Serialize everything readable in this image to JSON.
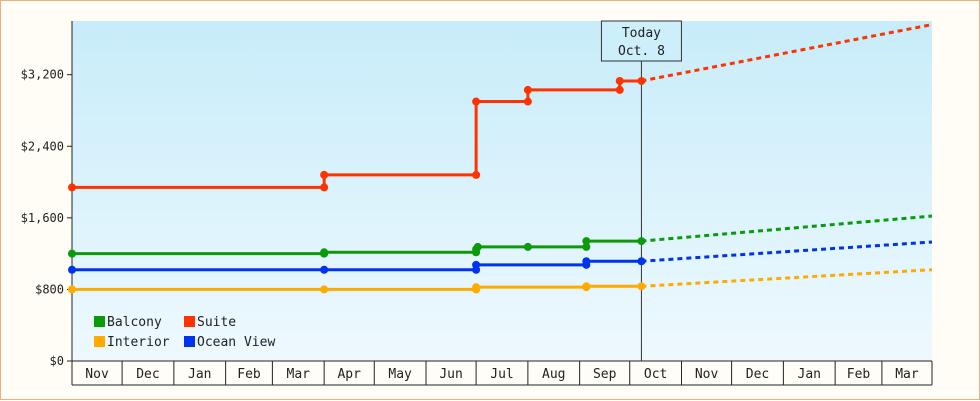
{
  "chart_data": {
    "type": "line",
    "subtype": "step",
    "title": "",
    "xlabel": "",
    "ylabel": "",
    "ylim": [
      0,
      3800
    ],
    "y_ticks": [
      "$0",
      "$800",
      "$1,600",
      "$2,400",
      "$3,200"
    ],
    "y_tick_values": [
      0,
      800,
      1600,
      2400,
      3200
    ],
    "x_tick_labels": [
      "Nov",
      "Dec",
      "Jan",
      "Feb",
      "Mar",
      "Apr",
      "May",
      "Jun",
      "Jul",
      "Aug",
      "Sep",
      "Oct",
      "Nov",
      "Dec",
      "Jan",
      "Feb",
      "Mar"
    ],
    "x_range": [
      "2024-11-01",
      "2026-03-31"
    ],
    "grid": false,
    "legend_position": "bottom-left",
    "today_marker": {
      "line1": "Today",
      "line2": "Oct. 8",
      "date": "2025-10-08"
    },
    "series": [
      {
        "name": "Balcony",
        "color": "#0a9a0a",
        "points": [
          {
            "date": "2024-11-01",
            "price": 1200
          },
          {
            "date": "2025-04-01",
            "price": 1200
          },
          {
            "date": "2025-04-01",
            "price": 1215
          },
          {
            "date": "2025-07-01",
            "price": 1215
          },
          {
            "date": "2025-07-01",
            "price": 1250
          },
          {
            "date": "2025-07-02",
            "price": 1275
          },
          {
            "date": "2025-08-01",
            "price": 1275
          },
          {
            "date": "2025-09-05",
            "price": 1275
          },
          {
            "date": "2025-09-05",
            "price": 1340
          },
          {
            "date": "2025-10-08",
            "price": 1340
          }
        ],
        "forecast": [
          {
            "date": "2025-10-08",
            "price": 1340
          },
          {
            "date": "2026-03-31",
            "price": 1620
          }
        ]
      },
      {
        "name": "Suite",
        "color": "#ff3300",
        "points": [
          {
            "date": "2024-11-01",
            "price": 1940
          },
          {
            "date": "2025-04-01",
            "price": 1940
          },
          {
            "date": "2025-04-01",
            "price": 2080
          },
          {
            "date": "2025-07-01",
            "price": 2080
          },
          {
            "date": "2025-07-01",
            "price": 2900
          },
          {
            "date": "2025-08-01",
            "price": 2900
          },
          {
            "date": "2025-08-01",
            "price": 3030
          },
          {
            "date": "2025-09-25",
            "price": 3030
          },
          {
            "date": "2025-09-25",
            "price": 3130
          },
          {
            "date": "2025-10-08",
            "price": 3130
          }
        ],
        "forecast": [
          {
            "date": "2025-10-08",
            "price": 3130
          },
          {
            "date": "2026-03-31",
            "price": 3760
          }
        ]
      },
      {
        "name": "Interior",
        "color": "#ffaa00",
        "points": [
          {
            "date": "2024-11-01",
            "price": 800
          },
          {
            "date": "2025-04-01",
            "price": 800
          },
          {
            "date": "2025-07-01",
            "price": 800
          },
          {
            "date": "2025-07-01",
            "price": 825
          },
          {
            "date": "2025-09-05",
            "price": 825
          },
          {
            "date": "2025-09-05",
            "price": 835
          },
          {
            "date": "2025-10-08",
            "price": 835
          }
        ],
        "forecast": [
          {
            "date": "2025-10-08",
            "price": 835
          },
          {
            "date": "2026-03-31",
            "price": 1020
          }
        ]
      },
      {
        "name": "Ocean View",
        "color": "#0033ee",
        "points": [
          {
            "date": "2024-11-01",
            "price": 1020
          },
          {
            "date": "2025-04-01",
            "price": 1020
          },
          {
            "date": "2025-07-01",
            "price": 1020
          },
          {
            "date": "2025-07-01",
            "price": 1075
          },
          {
            "date": "2025-09-05",
            "price": 1075
          },
          {
            "date": "2025-09-05",
            "price": 1115
          },
          {
            "date": "2025-10-08",
            "price": 1115
          }
        ],
        "forecast": [
          {
            "date": "2025-10-08",
            "price": 1115
          },
          {
            "date": "2026-03-31",
            "price": 1330
          }
        ]
      }
    ],
    "legend_order": [
      "Balcony",
      "Suite",
      "Interior",
      "Ocean View"
    ]
  }
}
